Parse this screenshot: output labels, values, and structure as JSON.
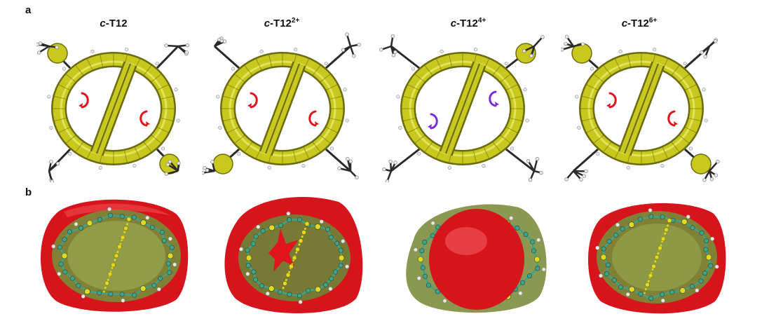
{
  "panels": {
    "a_label": "a",
    "b_label": "b"
  },
  "titles": [
    {
      "prefix": "c",
      "base": "-T12",
      "charge": ""
    },
    {
      "prefix": "c",
      "base": "-T12",
      "charge": "2+"
    },
    {
      "prefix": "c",
      "base": "-T12",
      "charge": "4+"
    },
    {
      "prefix": "c",
      "base": "-T12",
      "charge": "6+"
    }
  ],
  "colors": {
    "acid_isosurface": "#c8c81e",
    "acid_dark": "#6b6b10",
    "diatropic_arrow": "#e0141e",
    "paratropic_arrow": "#7b2be0",
    "shielding_red": "#d6141c",
    "shielding_green": "#7a8a3a",
    "atom_teal": "#3fa38a",
    "atom_yellow": "#e6d81c",
    "hydrogen": "#e8e8e8",
    "methyl": "#2a2a2a"
  },
  "ring_currents": [
    "diatropic",
    "diatropic",
    "paratropic",
    "diatropic"
  ]
}
